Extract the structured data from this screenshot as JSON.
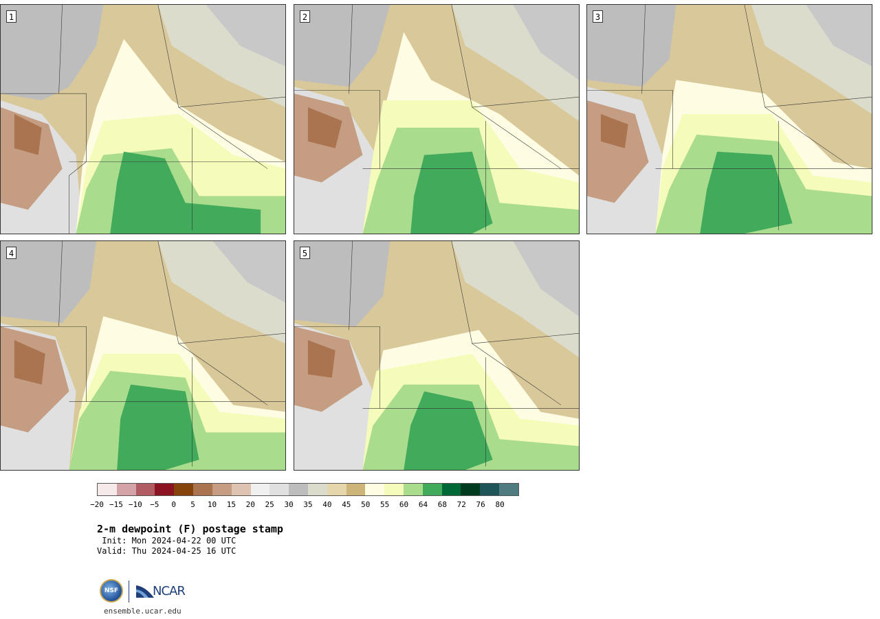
{
  "panels": [
    {
      "label": "1"
    },
    {
      "label": "2"
    },
    {
      "label": "3"
    },
    {
      "label": "4"
    },
    {
      "label": "5"
    }
  ],
  "colorbar": {
    "colors": [
      "#f5e9ea",
      "#d4a3a8",
      "#b15c62",
      "#8a1520",
      "#85440c",
      "#a9744f",
      "#c59d82",
      "#dfc3b1",
      "#f0f0f0",
      "#e0e0e0",
      "#bdbdbd",
      "#dcdccd",
      "#e6d6ac",
      "#cdb479",
      "#fefde4",
      "#f5fbb8",
      "#a9dc8d",
      "#42ab5b",
      "#006837",
      "#003a1f",
      "#1f5558",
      "#4f7c80"
    ],
    "tick_labels": [
      "−20",
      "−15",
      "−10",
      "−5",
      "0",
      "5",
      "10",
      "15",
      "20",
      "25",
      "30",
      "35",
      "40",
      "45",
      "50",
      "55",
      "60",
      "64",
      "68",
      "72",
      "76",
      "80"
    ]
  },
  "title": "2-m dewpoint (F) postage stamp",
  "init": " Init: Mon 2024-04-22 00 UTC",
  "valid": "Valid: Thu 2024-04-25 16 UTC",
  "logo": {
    "nsf": "NSF",
    "ncar": "NCAR"
  },
  "site": "ensemble.ucar.edu"
}
